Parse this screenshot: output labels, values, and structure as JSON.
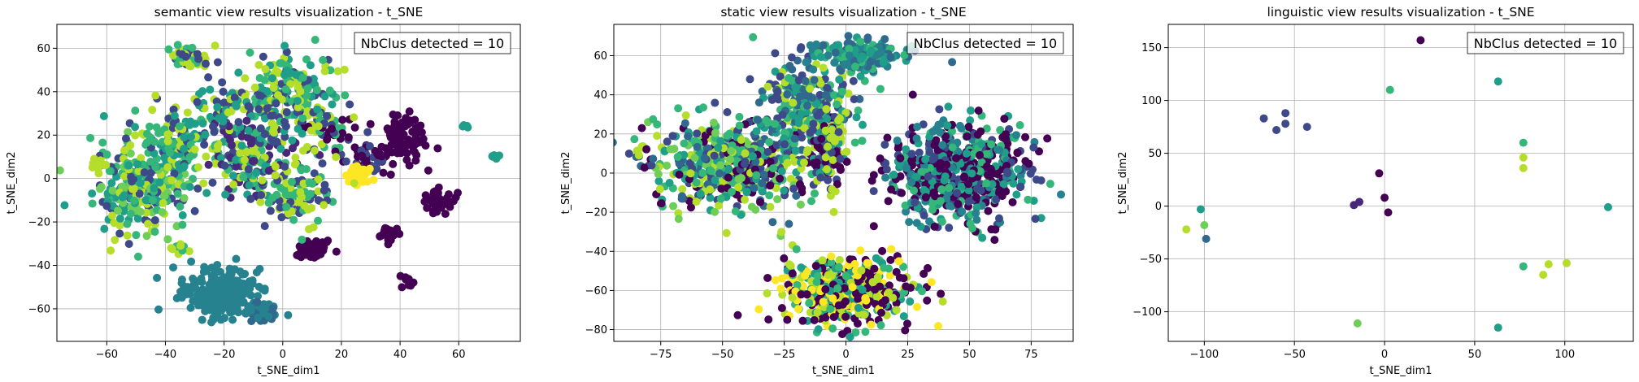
{
  "palette": [
    "#440154",
    "#482878",
    "#3e4989",
    "#31688e",
    "#26828e",
    "#1f9e89",
    "#35b779",
    "#6ece58",
    "#b5de2b",
    "#fde725"
  ],
  "chart_data": [
    {
      "type": "scatter",
      "title": "semantic view results visualization - t_SNE",
      "xlabel": "t_SNE_dim1",
      "ylabel": "t_SNE_dim2",
      "xlim": [
        -77,
        81
      ],
      "ylim": [
        -75,
        71
      ],
      "xticks": [
        -60,
        -40,
        -20,
        0,
        20,
        40,
        60
      ],
      "yticks": [
        -60,
        -40,
        -20,
        0,
        20,
        40,
        60
      ],
      "xtick_labels": [
        "−60",
        "−40",
        "−20",
        "0",
        "20",
        "40",
        "60"
      ],
      "ytick_labels": [
        "−60",
        "−40",
        "−20",
        "0",
        "20",
        "40",
        "60"
      ],
      "grid": true,
      "annotation": "NbClus detected = 10",
      "annotation_position": "top-right",
      "clusters": [
        {
          "cx": -22,
          "cy": -52,
          "rx": 10,
          "ry": 9,
          "n": 260,
          "colors": [
            4
          ]
        },
        {
          "cx": -8,
          "cy": -62,
          "rx": 5,
          "ry": 4,
          "n": 50,
          "colors": [
            4,
            3
          ]
        },
        {
          "cx": 40,
          "cy": 18,
          "rx": 9,
          "ry": 9,
          "n": 90,
          "colors": [
            0
          ]
        },
        {
          "cx": 28,
          "cy": 10,
          "rx": 6,
          "ry": 6,
          "n": 40,
          "colors": [
            0,
            2
          ]
        },
        {
          "cx": 52,
          "cy": -10,
          "rx": 5,
          "ry": 5,
          "n": 45,
          "colors": [
            0
          ]
        },
        {
          "cx": 10,
          "cy": -33,
          "rx": 5,
          "ry": 4,
          "n": 55,
          "colors": [
            0
          ]
        },
        {
          "cx": 36,
          "cy": -25,
          "rx": 3,
          "ry": 3,
          "n": 25,
          "colors": [
            0
          ]
        },
        {
          "cx": 42,
          "cy": -46,
          "rx": 2,
          "ry": 2,
          "n": 10,
          "colors": [
            0
          ]
        },
        {
          "cx": 26,
          "cy": 2,
          "rx": 4,
          "ry": 3,
          "n": 45,
          "colors": [
            9
          ]
        },
        {
          "cx": 14,
          "cy": 22,
          "rx": 8,
          "ry": 10,
          "n": 60,
          "colors": [
            2,
            0,
            6,
            8
          ]
        },
        {
          "cx": -48,
          "cy": -5,
          "rx": 14,
          "ry": 16,
          "n": 260,
          "colors": [
            6,
            5,
            8,
            2,
            7
          ]
        },
        {
          "cx": -35,
          "cy": 18,
          "rx": 12,
          "ry": 14,
          "n": 150,
          "colors": [
            5,
            6,
            2,
            8
          ]
        },
        {
          "cx": -10,
          "cy": 10,
          "rx": 12,
          "ry": 20,
          "n": 220,
          "colors": [
            2,
            8,
            6,
            5,
            1
          ]
        },
        {
          "cx": 4,
          "cy": 40,
          "rx": 12,
          "ry": 14,
          "n": 170,
          "colors": [
            2,
            8,
            5,
            6
          ]
        },
        {
          "cx": -32,
          "cy": 56,
          "rx": 6,
          "ry": 5,
          "n": 60,
          "colors": [
            8,
            2,
            6
          ]
        },
        {
          "cx": -20,
          "cy": 34,
          "rx": 8,
          "ry": 6,
          "n": 50,
          "colors": [
            8,
            2,
            5
          ]
        },
        {
          "cx": 6,
          "cy": -8,
          "rx": 8,
          "ry": 12,
          "n": 90,
          "colors": [
            8,
            2,
            6
          ]
        },
        {
          "cx": -64,
          "cy": 7,
          "rx": 3,
          "ry": 2,
          "n": 15,
          "colors": [
            8
          ]
        },
        {
          "cx": -36,
          "cy": -32,
          "rx": 3,
          "ry": 3,
          "n": 15,
          "colors": [
            8,
            6
          ]
        },
        {
          "cx": 62,
          "cy": 24,
          "rx": 1,
          "ry": 1,
          "n": 4,
          "colors": [
            5
          ]
        },
        {
          "cx": 72,
          "cy": 10,
          "rx": 1.2,
          "ry": 1,
          "n": 6,
          "colors": [
            5
          ]
        }
      ]
    },
    {
      "type": "scatter",
      "title": "static view results visualization - t_SNE",
      "xlabel": "t_SNE_dim1",
      "ylabel": "t_SNE_dim2",
      "xlim": [
        -94,
        92
      ],
      "ylim": [
        -86,
        76
      ],
      "xticks": [
        -75,
        -50,
        -25,
        0,
        25,
        50,
        75
      ],
      "yticks": [
        -80,
        -60,
        -40,
        -20,
        0,
        20,
        40,
        60
      ],
      "xtick_labels": [
        "−75",
        "−50",
        "−25",
        "0",
        "25",
        "50",
        "75"
      ],
      "ytick_labels": [
        "−80",
        "−60",
        "−40",
        "−20",
        "0",
        "20",
        "40",
        "60"
      ],
      "grid": true,
      "annotation": "NbClus detected = 10",
      "annotation_position": "top-right",
      "clusters": [
        {
          "cx": -45,
          "cy": 5,
          "rx": 28,
          "ry": 20,
          "n": 520,
          "colors": [
            8,
            7,
            6,
            5,
            3,
            2,
            0
          ]
        },
        {
          "cx": -15,
          "cy": 35,
          "rx": 16,
          "ry": 18,
          "n": 260,
          "colors": [
            8,
            6,
            5,
            3,
            2
          ]
        },
        {
          "cx": 7,
          "cy": 60,
          "rx": 14,
          "ry": 6,
          "n": 200,
          "colors": [
            5,
            6,
            4,
            3
          ]
        },
        {
          "cx": -8,
          "cy": 12,
          "rx": 7,
          "ry": 14,
          "n": 120,
          "colors": [
            0,
            2,
            8,
            5
          ]
        },
        {
          "cx": 45,
          "cy": 0,
          "rx": 24,
          "ry": 22,
          "n": 560,
          "colors": [
            0,
            0,
            2,
            5,
            6,
            4
          ]
        },
        {
          "cx": 0,
          "cy": -60,
          "rx": 22,
          "ry": 14,
          "n": 460,
          "colors": [
            0,
            0,
            8,
            6,
            5,
            9
          ]
        },
        {
          "cx": -82,
          "cy": 12,
          "rx": 2,
          "ry": 2,
          "n": 8,
          "colors": [
            0,
            8
          ]
        }
      ]
    },
    {
      "type": "scatter",
      "title": "linguistic view results visualization - t_SNE",
      "xlabel": "t_SNE_dim1",
      "ylabel": "t_SNE_dim2",
      "xlim": [
        -120,
        138
      ],
      "ylim": [
        -128,
        172
      ],
      "xticks": [
        -100,
        -50,
        0,
        50,
        100
      ],
      "yticks": [
        -100,
        -50,
        0,
        50,
        100,
        150
      ],
      "xtick_labels": [
        "−100",
        "−50",
        "0",
        "50",
        "100"
      ],
      "ytick_labels": [
        "−100",
        "−50",
        "0",
        "50",
        "100",
        "150"
      ],
      "grid": true,
      "annotation": "NbClus detected = 10",
      "annotation_position": "top-right",
      "points": [
        {
          "x": 20,
          "y": 157,
          "c": 0
        },
        {
          "x": 63,
          "y": 118,
          "c": 5
        },
        {
          "x": 3,
          "y": 110,
          "c": 6
        },
        {
          "x": -67,
          "y": 83,
          "c": 2
        },
        {
          "x": -55,
          "y": 88,
          "c": 2
        },
        {
          "x": -55,
          "y": 78,
          "c": 2
        },
        {
          "x": -60,
          "y": 72,
          "c": 2
        },
        {
          "x": -43,
          "y": 75,
          "c": 2
        },
        {
          "x": 77,
          "y": 60,
          "c": 6
        },
        {
          "x": 77,
          "y": 46,
          "c": 8
        },
        {
          "x": 77,
          "y": 36,
          "c": 8
        },
        {
          "x": -3,
          "y": 31,
          "c": 0
        },
        {
          "x": -14,
          "y": 4,
          "c": 1
        },
        {
          "x": -17,
          "y": 1,
          "c": 1
        },
        {
          "x": 0,
          "y": 8,
          "c": 0
        },
        {
          "x": 2,
          "y": -6,
          "c": 0
        },
        {
          "x": 124,
          "y": -1,
          "c": 5
        },
        {
          "x": -102,
          "y": -3,
          "c": 5
        },
        {
          "x": -100,
          "y": -18,
          "c": 7
        },
        {
          "x": -110,
          "y": -22,
          "c": 8
        },
        {
          "x": -99,
          "y": -31,
          "c": 3
        },
        {
          "x": 77,
          "y": -57,
          "c": 6
        },
        {
          "x": 91,
          "y": -55,
          "c": 8
        },
        {
          "x": 101,
          "y": -54,
          "c": 8
        },
        {
          "x": 88,
          "y": -65,
          "c": 8
        },
        {
          "x": -15,
          "y": -111,
          "c": 7
        },
        {
          "x": 63,
          "y": -115,
          "c": 5
        }
      ]
    }
  ]
}
